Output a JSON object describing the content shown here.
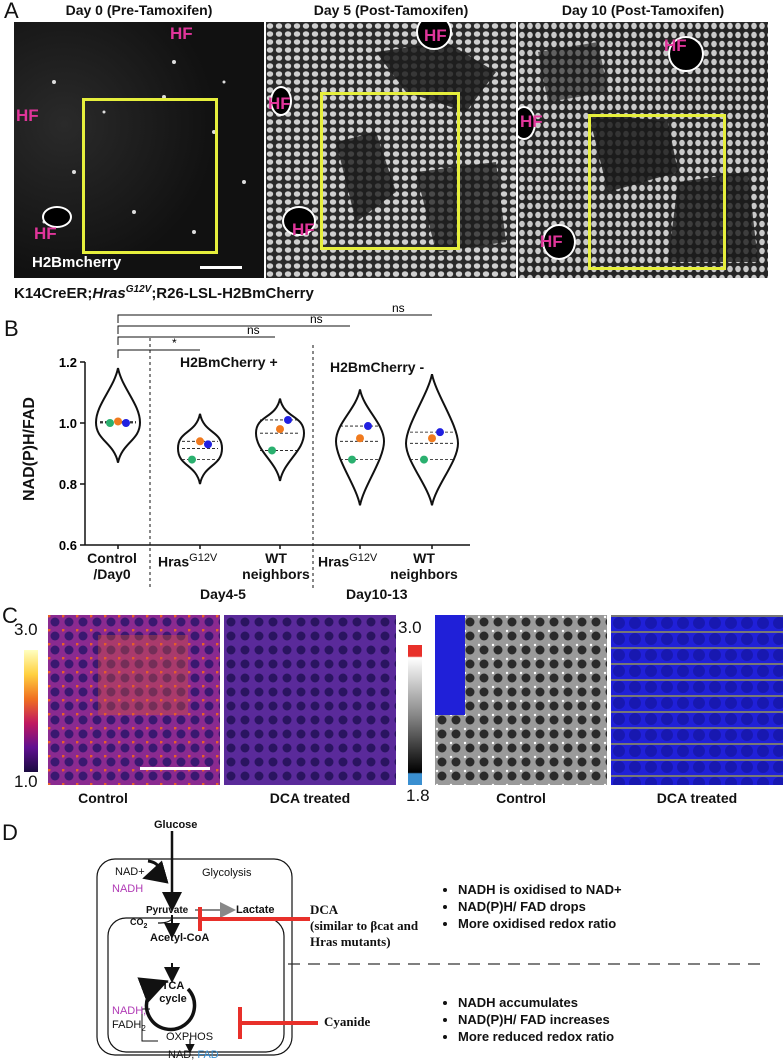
{
  "panel_a": {
    "letter": "A",
    "images": [
      {
        "title": "Day 0 (Pre-Tamoxifen)",
        "hf_labels": [
          "HF",
          "HF",
          "HF"
        ]
      },
      {
        "title": "Day 5 (Post-Tamoxifen)",
        "hf_labels": [
          "HF",
          "HF",
          "HF"
        ]
      },
      {
        "title": "Day 10 (Post-Tamoxifen)",
        "hf_labels": [
          "HF",
          "HF",
          "HF"
        ]
      }
    ],
    "channel_label": "H2Bmcherry",
    "genotype_pre": "K14CreER;",
    "genotype_italic": "Hras",
    "genotype_sup": "G12V",
    "genotype_post": ";R26-LSL-H2BmCherry",
    "box_color": "#e6ef3c",
    "hf_color": "#e0359a"
  },
  "panel_b": {
    "letter": "B",
    "group_label_pos": "H2BmCherry +",
    "group_label_neg": "H2BmCherry -",
    "day_label_1": "Day4-5",
    "day_label_2": "Day10-13",
    "sig_labels": [
      "ns",
      "ns",
      "ns",
      "*"
    ],
    "chart_data": {
      "type": "violin",
      "ylabel": "NAD(P)H/FAD",
      "ylim": [
        0.6,
        1.2
      ],
      "yticks": [
        "1.2",
        "1.0",
        "0.8",
        "0.6"
      ],
      "categories": [
        {
          "line1": "Control",
          "line2": "/Day0"
        },
        {
          "line1": "Hras",
          "sup": "G12V",
          "line2": ""
        },
        {
          "line1": "WT",
          "line2": "neighbors"
        },
        {
          "line1": "Hras",
          "sup": "G12V",
          "line2": ""
        },
        {
          "line1": "WT",
          "line2": "neighbors"
        }
      ],
      "series": [
        {
          "color": "#2ab06f",
          "values": [
            1.0,
            0.88,
            0.91,
            0.88,
            0.88
          ]
        },
        {
          "color": "#f07a1e",
          "values": [
            1.005,
            0.94,
            0.98,
            0.95,
            0.95
          ]
        },
        {
          "color": "#2020e0",
          "values": [
            1.0,
            0.93,
            1.01,
            0.99,
            0.97
          ]
        }
      ],
      "ranges": [
        [
          0.87,
          1.18
        ],
        [
          0.8,
          1.03
        ],
        [
          0.81,
          1.08
        ],
        [
          0.73,
          1.11
        ],
        [
          0.73,
          1.16
        ]
      ]
    }
  },
  "panel_c": {
    "letter": "C",
    "scale1_max": "3.0",
    "scale1_min": "1.0",
    "scale2_max": "3.0",
    "scale2_min": "1.8",
    "captions": [
      "Control",
      "DCA treated",
      "Control",
      "DCA treated"
    ]
  },
  "panel_d": {
    "letter": "D",
    "glucose": "Glucose",
    "glycolysis": "Glycolysis",
    "nad_plus": "NAD+",
    "nadh": "NADH",
    "pyruvate": "Pyruvate",
    "lactate": "Lactate",
    "co2": "CO",
    "co2_sub": "2",
    "acetyl_coa": "Acetyl-CoA",
    "tca_line1": "TCA",
    "tca_line2": "cycle",
    "nadh2": "NADH,",
    "fadh2": "FADH",
    "fadh2_sub": "2",
    "oxphos": "OXPHOS",
    "nad2": "NAD,",
    "fad": "FAD",
    "dca_line1": "DCA",
    "dca_line2": "(similar to βcat and",
    "dca_line3": "Hras mutants)",
    "cyanide": "Cyanide",
    "bullets_dca": [
      "NADH is oxidised to NAD+",
      "NAD(P)H/ FAD drops",
      "More oxidised redox ratio"
    ],
    "bullets_cyanide": [
      "NADH accumulates",
      "NAD(P)H/ FAD increases",
      "More reduced redox ratio"
    ],
    "inhibitor_color": "#e8302a",
    "nadh_color": "#b03ab5",
    "fad_color": "#3a8fd0"
  }
}
